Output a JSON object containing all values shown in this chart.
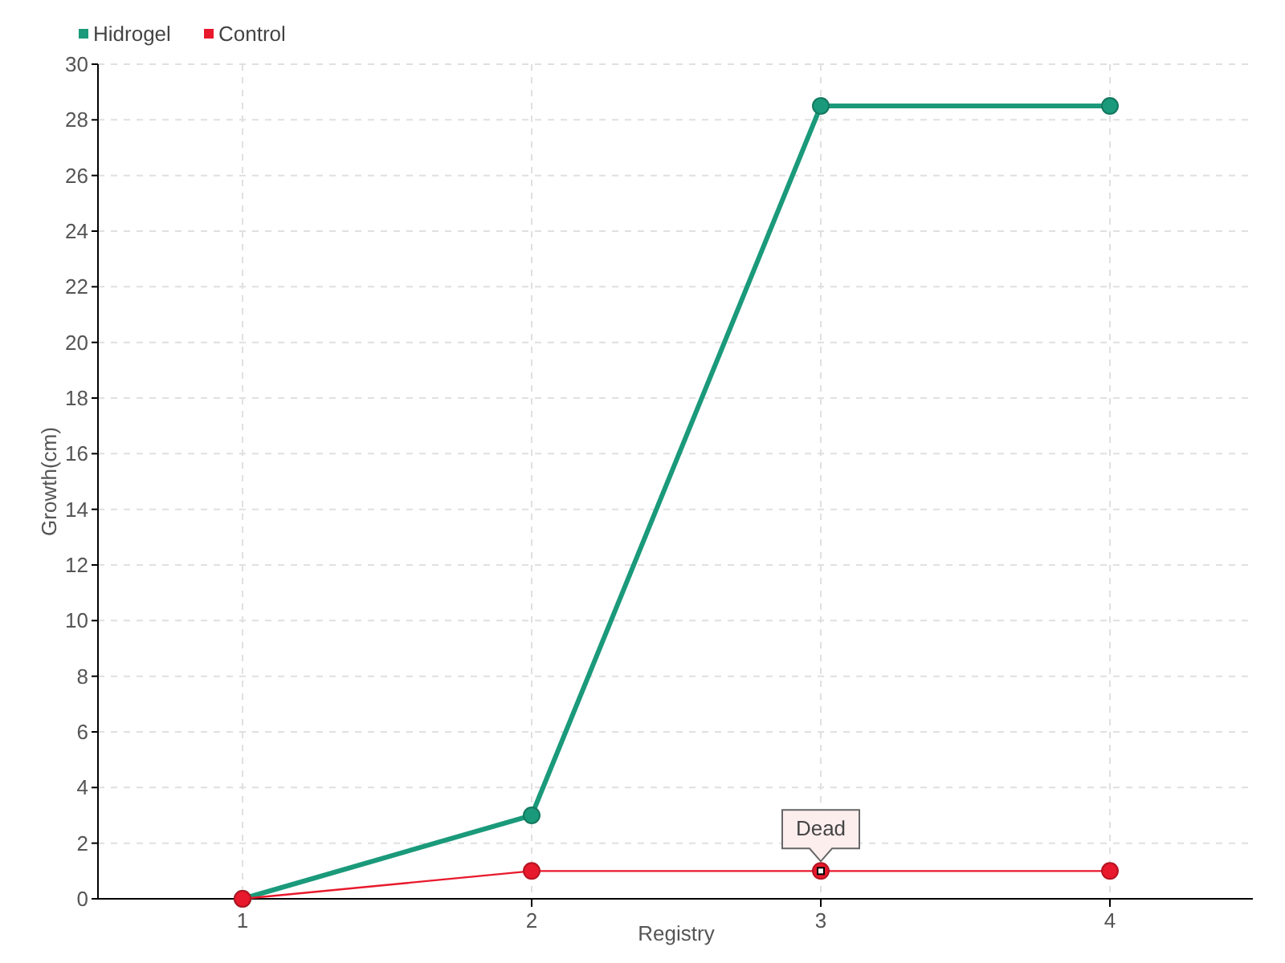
{
  "chart_data": {
    "type": "line",
    "xlabel": "Registry",
    "ylabel": "Growth(cm)",
    "categories": [
      "1",
      "2",
      "3",
      "4"
    ],
    "series": [
      {
        "name": "Hidrogel",
        "color": "#1a9a7a",
        "values": [
          0,
          3,
          28.5,
          28.5
        ]
      },
      {
        "name": "Control",
        "color": "#e8192c",
        "values": [
          0,
          1,
          1,
          1
        ]
      }
    ],
    "ylim": [
      0,
      30
    ],
    "yticks": [
      0,
      2,
      4,
      6,
      8,
      10,
      12,
      14,
      16,
      18,
      20,
      22,
      24,
      26,
      28,
      30
    ],
    "grid": true,
    "legend": "top left",
    "marker": "circle",
    "annotations": [
      {
        "text": "Dead",
        "x": "3",
        "y": 1
      }
    ]
  }
}
